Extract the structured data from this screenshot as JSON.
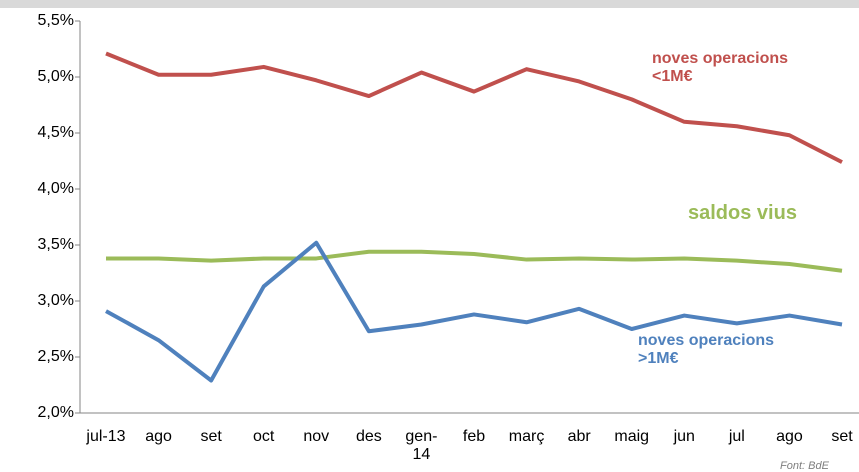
{
  "chart_data": {
    "type": "line",
    "categories": [
      "jul-13",
      "ago",
      "set",
      "oct",
      "nov",
      "des",
      "gen-\n14",
      "feb",
      "març",
      "abr",
      "maig",
      "jun",
      "jul",
      "ago",
      "set"
    ],
    "series": [
      {
        "name": "noves operacions\n<1M€",
        "color": "#c0504d",
        "values": [
          5.21,
          5.02,
          5.02,
          5.09,
          4.97,
          4.83,
          5.04,
          4.87,
          5.07,
          4.96,
          4.8,
          4.6,
          4.56,
          4.48,
          4.24
        ]
      },
      {
        "name": "saldos vius",
        "color": "#9bbb59",
        "values": [
          3.38,
          3.38,
          3.36,
          3.38,
          3.38,
          3.44,
          3.44,
          3.42,
          3.37,
          3.38,
          3.37,
          3.38,
          3.36,
          3.33,
          3.27
        ]
      },
      {
        "name": "noves operacions\n>1M€",
        "color": "#4f81bd",
        "values": [
          2.91,
          2.65,
          2.29,
          3.13,
          3.52,
          2.73,
          2.79,
          2.88,
          2.81,
          2.93,
          2.75,
          2.87,
          2.8,
          2.87,
          2.79
        ]
      }
    ],
    "ylim": [
      2.0,
      5.5
    ],
    "yticks": [
      {
        "value": 2.0,
        "label": "2,0%"
      },
      {
        "value": 2.5,
        "label": "2,5%"
      },
      {
        "value": 3.0,
        "label": "3,0%"
      },
      {
        "value": 3.5,
        "label": "3,5%"
      },
      {
        "value": 4.0,
        "label": "4,0%"
      },
      {
        "value": 4.5,
        "label": "4,5%"
      },
      {
        "value": 5.0,
        "label": "5,0%"
      },
      {
        "value": 5.5,
        "label": "5,5%"
      }
    ],
    "grid": false,
    "source": "Font: BdE"
  }
}
